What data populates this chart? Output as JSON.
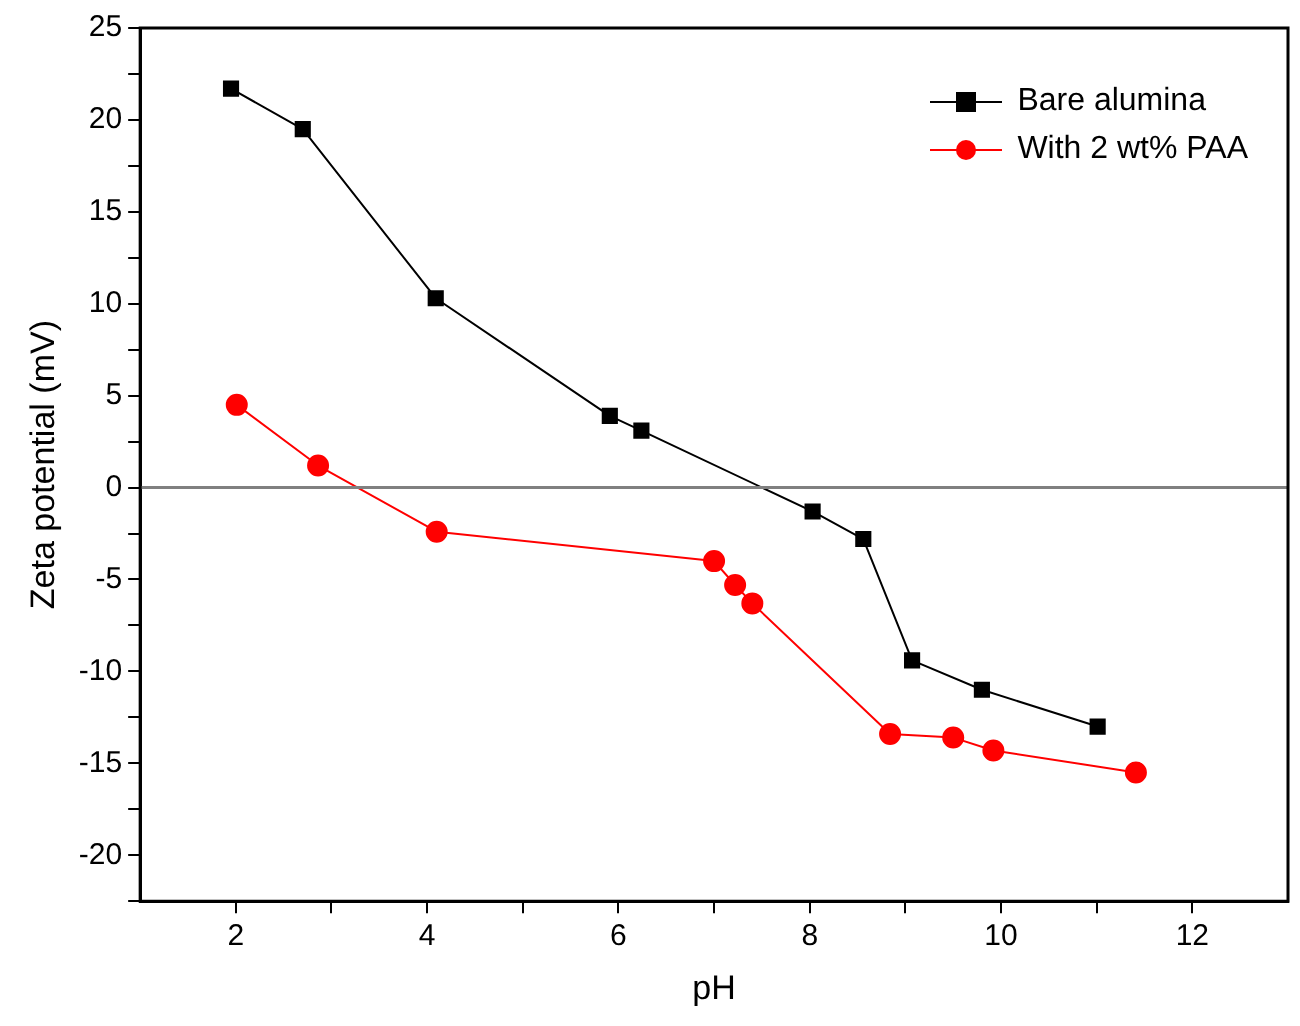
{
  "chart_data": {
    "type": "line",
    "xlabel": "pH",
    "ylabel": "Zeta potential (mV)",
    "xlim": [
      1,
      13
    ],
    "xticks": [
      2,
      {
        "value": 3,
        "label": null
      },
      4,
      {
        "value": 5,
        "label": null
      },
      6,
      {
        "value": 7,
        "label": null
      },
      8,
      {
        "value": 9,
        "label": null
      },
      10,
      {
        "value": 11,
        "label": null
      },
      12
    ],
    "ylim": [
      -22.5,
      25
    ],
    "yticks": [
      {
        "value": -22.5,
        "label": null
      },
      -20,
      {
        "value": -17.5,
        "label": null
      },
      -15,
      {
        "value": -12.5,
        "label": null
      },
      -10,
      {
        "value": -7.5,
        "label": null
      },
      -5,
      {
        "value": -2.5,
        "label": null
      },
      0,
      {
        "value": 2.5,
        "label": null
      },
      5,
      {
        "value": 7.5,
        "label": null
      },
      10,
      {
        "value": 12.5,
        "label": null
      },
      15,
      {
        "value": 17.5,
        "label": null
      },
      20,
      {
        "value": 22.5,
        "label": null
      },
      25
    ],
    "series": [
      {
        "name": "Bare alumina",
        "color": "#000000",
        "marker": "square",
        "x": [
          1.95,
          2.7,
          4.09,
          5.91,
          6.24,
          8.03,
          8.56,
          9.07,
          9.8,
          11.01
        ],
        "values": [
          21.7,
          19.5,
          10.3,
          3.9,
          3.1,
          -1.3,
          -2.8,
          -9.4,
          -11.0,
          -13.0
        ]
      },
      {
        "name": "With 2 wt% PAA",
        "color": "#ff0000",
        "marker": "circle",
        "x": [
          2.01,
          2.86,
          4.1,
          7.0,
          7.22,
          7.4,
          8.84,
          9.5,
          9.92,
          11.41
        ],
        "values": [
          4.5,
          1.2,
          -2.4,
          -4.0,
          -5.3,
          -6.3,
          -13.4,
          -13.6,
          -14.3,
          -15.5
        ]
      }
    ],
    "ref_lines": [
      {
        "axis": "y",
        "value": 0,
        "color": "#808080"
      }
    ],
    "legend": "top right",
    "grid": false,
    "line_style": "solid"
  }
}
